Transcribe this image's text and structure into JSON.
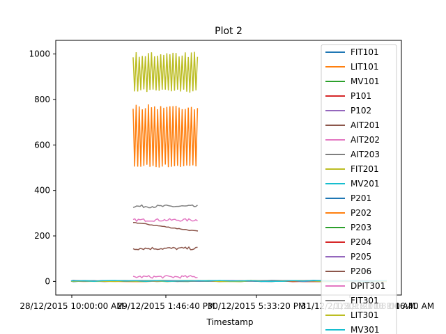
{
  "chart_data": {
    "type": "line",
    "title": "Plot 2",
    "xlabel": "Timestamp",
    "ylabel": "",
    "ylim": [
      -60,
      1060
    ],
    "yticks": [
      0,
      200,
      400,
      600,
      800,
      1000
    ],
    "x_tick_labels": [
      "28/12/2015 10:00:00 AM",
      "29/12/2015 1:46:40 PM",
      "30/12/2015 5:33:20 PM",
      "31/12/2015 9:20:00 PM",
      "1/1/2016 1:06:40 AM",
      "2/1/2016 1:08:01 AM"
    ],
    "x_tick_label_overlaps": [
      "28/12/2015 10:00:00 AM",
      "29/12/2015 1:46:40 PM",
      "30/12/2015 5:33:20 PM",
      "31/12/2015 9:20:00 PM",
      "1/1/2016 1:06:40 AM",
      "2/1/2016 1:08:01 AM"
    ],
    "x_tick_labels_visible": [
      "28/12/2015 10:00:00 AM",
      "29/12/2015 1:46:40 PM",
      "30/12/2015 5:33:20 PM",
      "31/12/2015 9:20:00 PM",
      "1/1/2016 1:06:40 AM",
      "2/1/2016 1:08:01 AM"
    ],
    "legend_position": "top-right",
    "grid": false,
    "series": [
      {
        "name": "FIT101",
        "color": "#1f77b4",
        "pattern": "flat",
        "level": 2.5
      },
      {
        "name": "LIT101",
        "color": "#ff7f0e",
        "pattern": "oscillating",
        "low": 500,
        "high": 780
      },
      {
        "name": " MV101",
        "color": "#2ca02c",
        "pattern": "flat",
        "level": 1.5
      },
      {
        "name": "P101",
        "color": "#d62728",
        "pattern": "flat",
        "level": 2
      },
      {
        "name": "P102",
        "color": "#9467bd",
        "pattern": "flat",
        "level": 1
      },
      {
        "name": " AIT201",
        "color": "#8c564b",
        "pattern": "decreasing",
        "start": 260,
        "end": 220
      },
      {
        "name": "AIT202",
        "color": "#e377c2",
        "pattern": "noisy",
        "level": 270
      },
      {
        "name": "AIT203",
        "color": "#7f7f7f",
        "pattern": "noisy",
        "level": 330
      },
      {
        "name": "FIT201",
        "color": "#bcbd22",
        "pattern": "oscillating",
        "low": 830,
        "high": 1010
      },
      {
        "name": " MV201",
        "color": "#17becf",
        "pattern": "flat",
        "level": 2
      },
      {
        "name": " P201",
        "color": "#1f77b4",
        "pattern": "flat",
        "level": 1
      },
      {
        "name": " P202",
        "color": "#ff7f0e",
        "pattern": "flat",
        "level": 1
      },
      {
        "name": "P203",
        "color": "#2ca02c",
        "pattern": "flat",
        "level": 2
      },
      {
        "name": " P204",
        "color": "#d62728",
        "pattern": "flat",
        "level": 1
      },
      {
        "name": "P205",
        "color": "#9467bd",
        "pattern": "flat",
        "level": 2
      },
      {
        "name": "P206",
        "color": "#8c564b",
        "pattern": "noisy",
        "level": 145
      },
      {
        "name": "DPIT301",
        "color": "#e377c2",
        "pattern": "noisy",
        "level": 20
      },
      {
        "name": "FIT301",
        "color": "#7f7f7f",
        "pattern": "flat",
        "level": 2
      },
      {
        "name": "LIT301",
        "color": "#bcbd22",
        "pattern": "flat",
        "level": 1
      },
      {
        "name": "MV301",
        "color": "#17becf",
        "pattern": "flat",
        "level": 2
      }
    ]
  }
}
